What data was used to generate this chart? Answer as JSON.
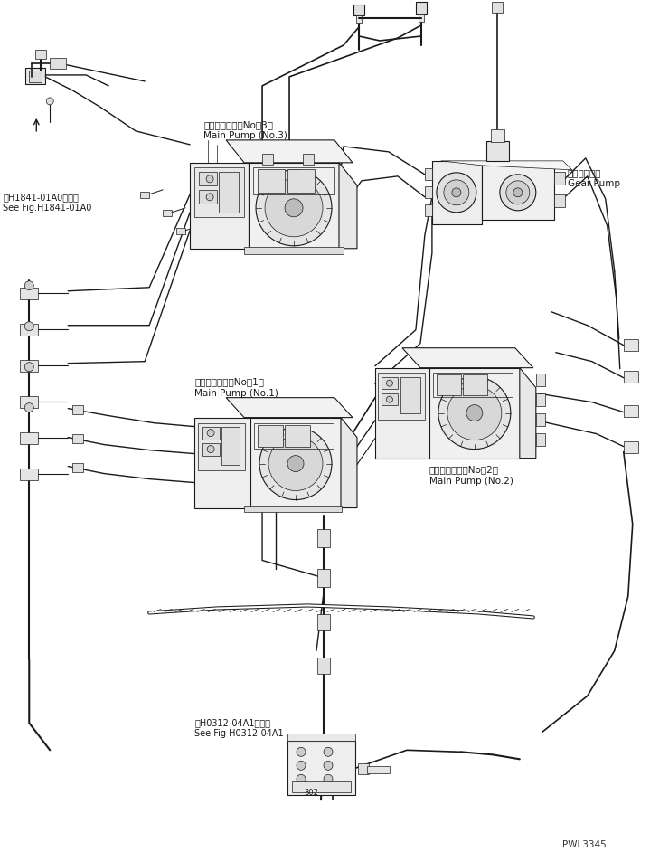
{
  "bg_color": "#ffffff",
  "line_color": "#1a1a1a",
  "fig_width": 7.19,
  "fig_height": 9.42,
  "dpi": 100,
  "watermark": "PWL3345",
  "labels": {
    "main_pump_3_jp": "メインポンプ（No．3）",
    "main_pump_3_en": "Main Pump (No.3)",
    "main_pump_1_jp": "メインポンプ（No．1）",
    "main_pump_1_en": "Main Pump (No.1)",
    "main_pump_2_jp": "メインポンプ（No．2）",
    "main_pump_2_en": "Main Pump (No.2)",
    "gear_pump_jp": "ギヤーポンプ",
    "gear_pump_en": "Gear Pump",
    "ref1_jp": "第H1841-01A0図参照",
    "ref1_en": "See Fig.H1841-01A0",
    "ref2_jp": "第H0312-04A1図参照",
    "ref2_en": "See Fig H0312-04A1"
  },
  "font_size_label": 7.5,
  "font_size_small": 6.5,
  "font_size_watermark": 7.5
}
